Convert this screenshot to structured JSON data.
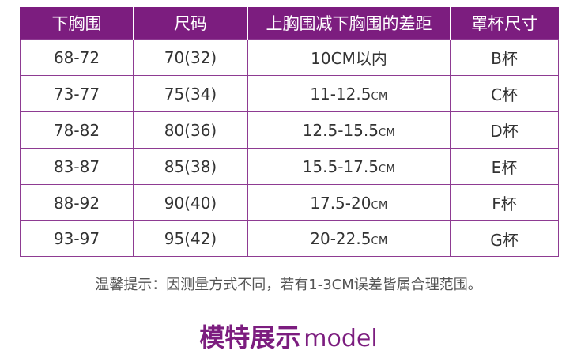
{
  "table": {
    "headers": [
      "下胸围",
      "尺码",
      "上胸围减下胸围的差距",
      "罩杯尺寸"
    ],
    "rows": [
      {
        "under": "68-72",
        "size": "70(32)",
        "diff": "10CM以内",
        "unit": "",
        "cup": "B杯"
      },
      {
        "under": "73-77",
        "size": "75(34)",
        "diff": "11-12.5",
        "unit": "CM",
        "cup": "C杯"
      },
      {
        "under": "78-82",
        "size": "80(36)",
        "diff": "12.5-15.5",
        "unit": "CM",
        "cup": "D杯"
      },
      {
        "under": "83-87",
        "size": "85(38)",
        "diff": "15.5-17.5",
        "unit": "CM",
        "cup": "E杯"
      },
      {
        "under": "88-92",
        "size": "90(40)",
        "diff": "17.5-20",
        "unit": "CM",
        "cup": "F杯"
      },
      {
        "under": "93-97",
        "size": "95(42)",
        "diff": "20-22.5",
        "unit": "CM",
        "cup": "G杯"
      }
    ]
  },
  "note": "温馨提示：因测量方式不同，若有1-3CM误差皆属合理范围。",
  "section_title": {
    "zh": "模特展示",
    "en": "model"
  },
  "colors": {
    "accent": "#7c1d7f",
    "border": "#8e3b92"
  }
}
